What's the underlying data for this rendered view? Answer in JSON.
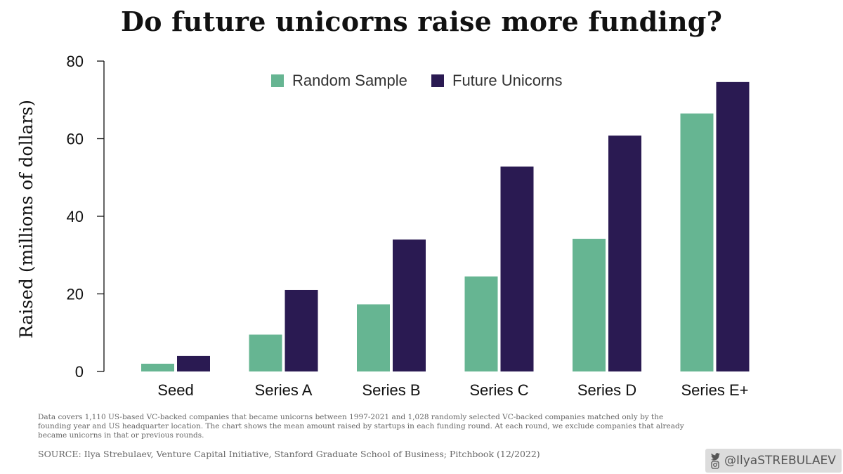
{
  "title": "Do future unicorns raise more funding?",
  "chart_data": {
    "type": "bar",
    "title": "Do future unicorns raise more funding?",
    "xlabel": "",
    "ylabel": "Raised (millions of dollars)",
    "ylim": [
      0,
      80
    ],
    "yticks": [
      0,
      20,
      40,
      60,
      80
    ],
    "grid": false,
    "legend_position": "top",
    "categories": [
      "Seed",
      "Series A",
      "Series B",
      "Series C",
      "Series D",
      "Series E+"
    ],
    "series": [
      {
        "name": "Random Sample",
        "color": "#66b592",
        "values": [
          2.0,
          9.5,
          17.3,
          24.5,
          34.2,
          66.5
        ]
      },
      {
        "name": "Future Unicorns",
        "color": "#2a1a52",
        "values": [
          4.0,
          21.0,
          34.0,
          52.8,
          60.8,
          74.6
        ]
      }
    ]
  },
  "footnote": "Data covers 1,110 US-based VC-backed companies that became unicorns between 1997-2021 and 1,028 randomly selected VC-backed companies matched only by the founding year and US headquarter location. The chart shows the mean amount raised by startups in each funding round. At each round, we exclude companies that already became unicorns in that or previous rounds.",
  "source": "SOURCE: Ilya Strebulaev, Venture Capital Initiative, Stanford Graduate School of Business; Pitchbook (12/2022)",
  "watermark": {
    "handle": "@IlyaSTREBULAEV",
    "icons": [
      "twitter-icon",
      "instagram-icon"
    ]
  }
}
